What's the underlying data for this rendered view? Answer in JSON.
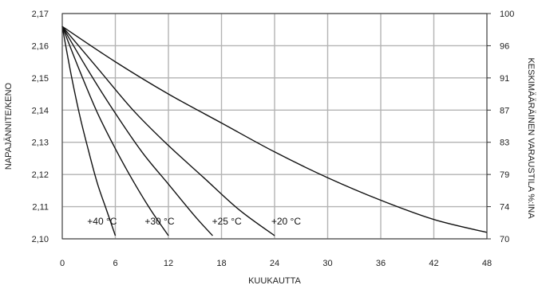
{
  "chart_data": {
    "type": "line",
    "xlabel": "KUUKAUTTA",
    "ylabel_left": "NAPAJÄNNITE/KENO",
    "ylabel_right": "KESKIMÄÄRÄINEN VARAUSTILA %:INA",
    "xlim": [
      0,
      48
    ],
    "ylim": [
      2.1,
      2.17
    ],
    "x_ticks": [
      "0",
      "6",
      "12",
      "18",
      "24",
      "30",
      "36",
      "42",
      "48"
    ],
    "y_ticks_left": [
      "2,10",
      "2,11",
      "2,12",
      "2,13",
      "2,14",
      "2,15",
      "2,16",
      "2,17"
    ],
    "y_ticks_right": [
      "70",
      "74",
      "79",
      "83",
      "87",
      "91",
      "96",
      "100"
    ],
    "grid": true,
    "series": [
      {
        "name": "+40 °C",
        "label_at": [
          4.5,
          2.1055
        ],
        "x": [
          0,
          1,
          2,
          3,
          4,
          5,
          6
        ],
        "y": [
          2.166,
          2.151,
          2.138,
          2.127,
          2.117,
          2.109,
          2.101
        ]
      },
      {
        "name": "+30 °C",
        "label_at": [
          11,
          2.1055
        ],
        "x": [
          0,
          2,
          4,
          6,
          8,
          10,
          12
        ],
        "y": [
          2.166,
          2.152,
          2.139,
          2.128,
          2.118,
          2.109,
          2.101
        ]
      },
      {
        "name": "+25 °C",
        "label_at": [
          18.6,
          2.1055
        ],
        "x": [
          0,
          3,
          6,
          9,
          12,
          15,
          17
        ],
        "y": [
          2.166,
          2.152,
          2.139,
          2.127,
          2.117,
          2.107,
          2.101
        ]
      },
      {
        "name": "+20 °C",
        "label_at": [
          25.3,
          2.1055
        ],
        "x": [
          0,
          4,
          8,
          12,
          16,
          20,
          24
        ],
        "y": [
          2.166,
          2.153,
          2.14,
          2.129,
          2.119,
          2.109,
          2.101
        ]
      },
      {
        "name": "",
        "x": [
          0,
          6,
          12,
          18,
          24,
          30,
          36,
          42,
          48
        ],
        "y": [
          2.166,
          2.155,
          2.145,
          2.136,
          2.127,
          2.119,
          2.112,
          2.106,
          2.102
        ]
      }
    ]
  }
}
